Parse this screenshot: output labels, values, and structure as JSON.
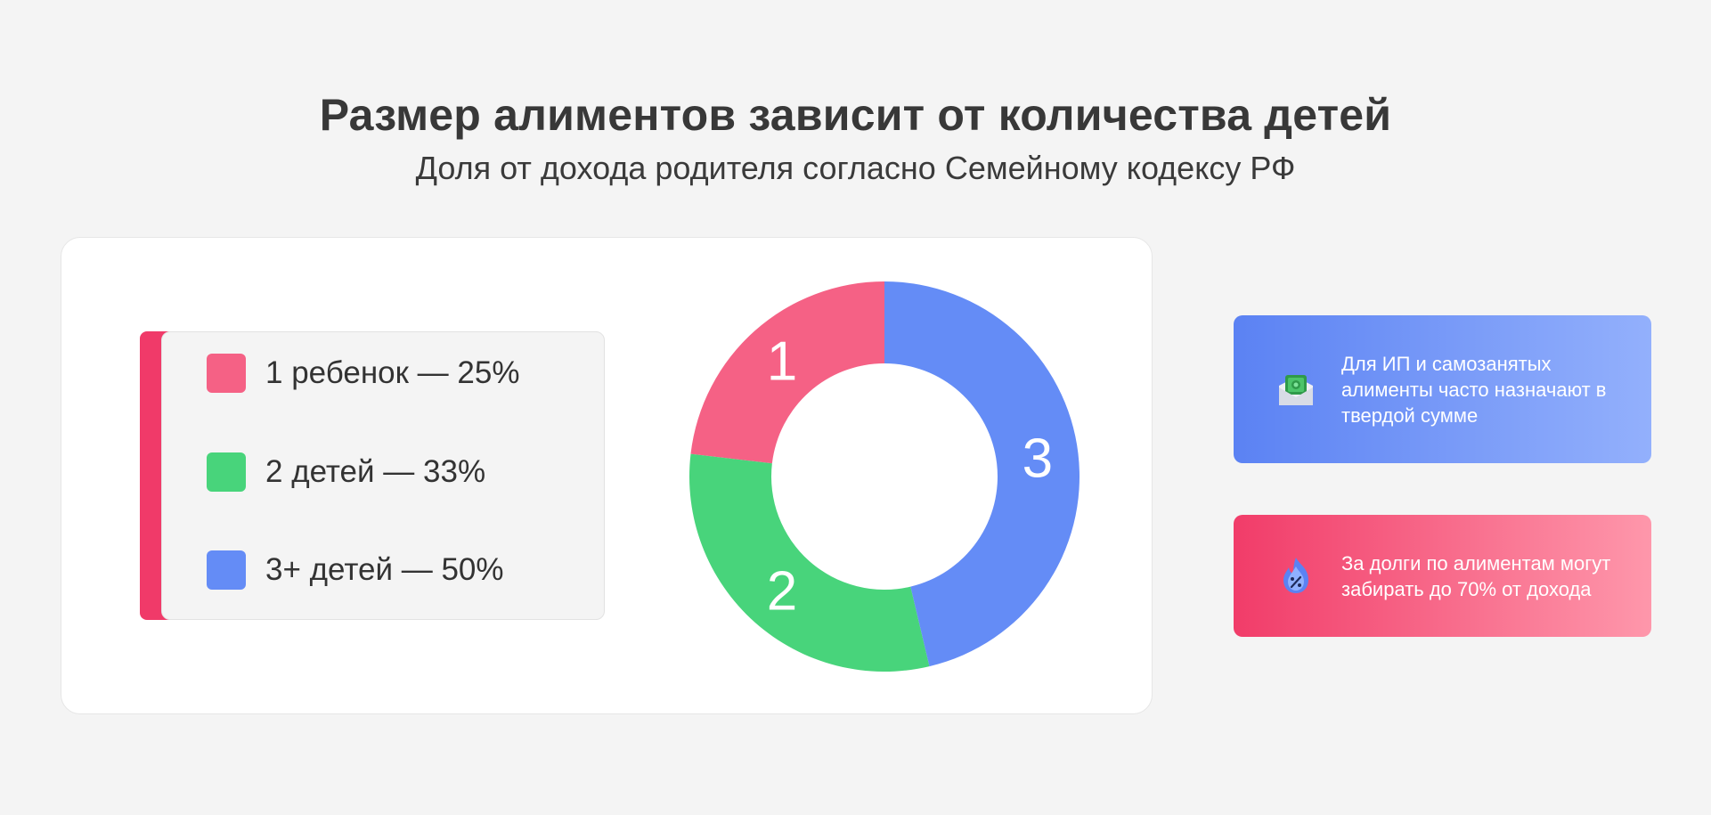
{
  "header": {
    "title": "Размер алиментов зависит от количества детей",
    "subtitle": "Доля от дохода родителя согласно Семейному кодексу РФ"
  },
  "legend": {
    "items": [
      {
        "label": "1 ребенок — 25%",
        "color": "#f56185"
      },
      {
        "label": "2 детей — 33%",
        "color": "#48d47b"
      },
      {
        "label": "3+ детей — 50%",
        "color": "#648cf6"
      }
    ]
  },
  "chart_data": {
    "type": "pie",
    "donut": true,
    "categories": [
      "1",
      "2",
      "3"
    ],
    "values": [
      25,
      33,
      50
    ],
    "colors": [
      "#f56185",
      "#48d47b",
      "#648cf6"
    ],
    "start_angle_deg": 0,
    "direction": "counterclockwise",
    "legend": "left"
  },
  "info_cards": [
    {
      "icon": "money-envelope-icon",
      "text": "Для ИП и самозанятых алименты часто назначают в твердой сумме",
      "gradient": [
        "#5b82f3",
        "#93b0fc"
      ]
    },
    {
      "icon": "percent-flame-icon",
      "text": "За долги по алиментам могут забирать до 70% от дохода",
      "gradient": [
        "#f13c69",
        "#fe97ab"
      ]
    }
  ]
}
